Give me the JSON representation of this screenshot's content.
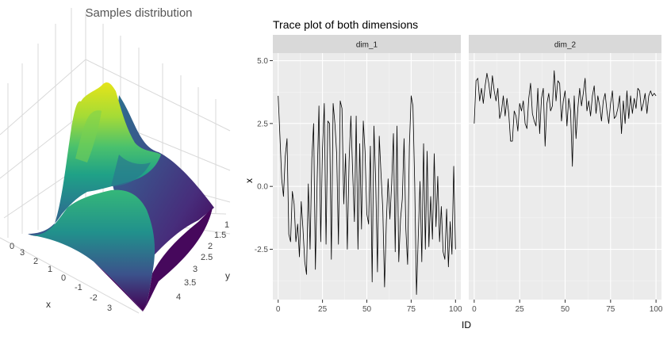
{
  "chart_data": [
    {
      "type": "surface",
      "title": "Samples distribution",
      "xlabel": "x",
      "ylabel": "y",
      "x_ticks": [
        "0",
        "3",
        "2",
        "1",
        "0",
        "-1",
        "-2",
        "3"
      ],
      "y_ticks": [
        "1",
        "1.5",
        "2",
        "2.5",
        "3",
        "3.5",
        "4"
      ],
      "colorscale": "viridis",
      "colors": {
        "low": "#440154",
        "mid": "#21918c",
        "high": "#fde725"
      }
    },
    {
      "type": "line",
      "title": "Trace plot of both dimensions",
      "xlabel": "ID",
      "ylabel": "x",
      "ylim": [
        -4.5,
        5.3
      ],
      "xlim": [
        -3,
        103
      ],
      "x_ticks": [
        0,
        25,
        50,
        75,
        100
      ],
      "y_ticks": [
        -2.5,
        0.0,
        2.5,
        5.0
      ],
      "y_tick_labels": [
        "-2.5",
        "0.0",
        "2.5",
        "5.0"
      ],
      "grid": true,
      "facets": [
        {
          "name": "dim_1",
          "values": [
            3.6,
            2.0,
            0.3,
            -0.4,
            1.2,
            1.9,
            -1.9,
            -2.2,
            -0.2,
            -0.7,
            -2.2,
            -1.5,
            -2.8,
            -0.6,
            -1.7,
            -3.0,
            -3.5,
            0.1,
            -2.5,
            1.1,
            2.5,
            -3.3,
            0.3,
            3.2,
            -2.2,
            1.5,
            3.3,
            -2.3,
            2.6,
            2.5,
            -2.9,
            3.3,
            2.5,
            1.3,
            -2.3,
            3.4,
            3.1,
            -0.7,
            1.3,
            -2.5,
            1.0,
            2.8,
            0.6,
            -1.4,
            2.8,
            -2.5,
            1.7,
            -1.7,
            2.6,
            1.4,
            -1.1,
            -1.5,
            1.6,
            -3.8,
            2.4,
            0.2,
            -3.4,
            2.0,
            0.5,
            -0.9,
            -4.0,
            -1.4,
            0.3,
            -1.3,
            0.1,
            2.1,
            -2.6,
            2.4,
            -3.0,
            -1.3,
            -0.5,
            1.9,
            -1.7,
            -3.1,
            1.6,
            3.6,
            3.2,
            0.1,
            -4.3,
            -2.0,
            0.2,
            -3.0,
            1.7,
            -2.5,
            1.4,
            -2.4,
            -0.4,
            -2.1,
            1.3,
            -1.6,
            0.4,
            -2.2,
            -0.8,
            -2.6,
            -2.9,
            -0.9,
            -3.2,
            -1.4,
            -2.7,
            0.8,
            -2.5
          ],
          "x_ticks": [
            0,
            25,
            50,
            75,
            100
          ]
        },
        {
          "name": "dim_2",
          "values": [
            2.5,
            4.2,
            4.3,
            3.4,
            3.9,
            3.3,
            4.0,
            4.5,
            4.1,
            3.5,
            4.4,
            3.8,
            3.4,
            3.9,
            2.7,
            3.0,
            3.6,
            2.8,
            3.5,
            2.9,
            1.8,
            1.8,
            3.0,
            2.8,
            2.2,
            3.3,
            3.0,
            3.4,
            2.5,
            2.3,
            3.5,
            4.1,
            2.9,
            2.6,
            2.4,
            3.9,
            2.1,
            3.5,
            3.9,
            1.6,
            3.3,
            3.7,
            3.0,
            3.2,
            4.6,
            3.4,
            4.2,
            4.1,
            2.6,
            3.4,
            3.8,
            2.4,
            3.5,
            3.0,
            0.8,
            3.6,
            1.9,
            3.1,
            3.9,
            3.2,
            3.7,
            4.3,
            3.0,
            3.4,
            2.8,
            3.6,
            4.0,
            2.9,
            3.6,
            3.2,
            2.6,
            3.4,
            3.7,
            3.0,
            2.5,
            3.3,
            3.8,
            2.7,
            2.8,
            3.1,
            3.6,
            2.1,
            3.4,
            2.5,
            3.8,
            2.7,
            3.6,
            2.9,
            3.5,
            3.1,
            3.9,
            3.8,
            3.0,
            3.3,
            3.7,
            2.9,
            3.6,
            3.8,
            3.6,
            3.7,
            3.6
          ],
          "x_ticks": [
            0,
            25,
            50,
            75,
            100
          ]
        }
      ]
    }
  ]
}
